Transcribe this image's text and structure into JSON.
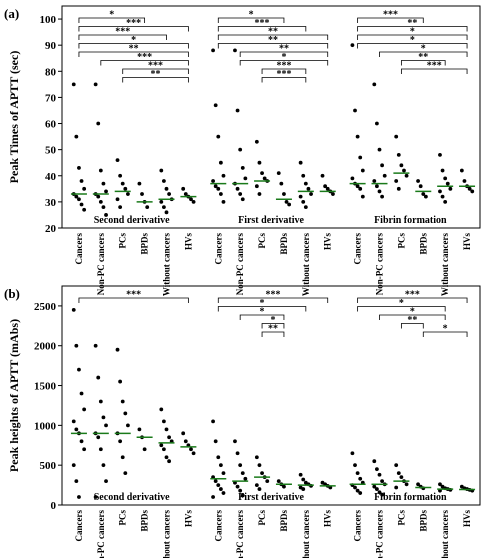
{
  "chart_data": [
    {
      "type": "dot",
      "title": "(a)",
      "y_label": "Peak Times of APTT (sec)",
      "ylim": [
        20,
        105
      ],
      "yticks": [
        20,
        30,
        40,
        50,
        60,
        70,
        80,
        90,
        100
      ],
      "sections": [
        {
          "name": "Second derivative",
          "groups": [
            {
              "name": "Cancers",
              "values": [
                75,
                55,
                43,
                38,
                35,
                33,
                32,
                31,
                29,
                27
              ],
              "median": 33
            },
            {
              "name": "Non-PC cancers",
              "values": [
                75,
                60,
                42,
                37,
                34,
                33,
                32,
                30,
                28,
                25
              ],
              "median": 33
            },
            {
              "name": "PCs",
              "values": [
                46,
                40,
                37,
                35,
                33,
                31,
                28
              ],
              "median": 34
            },
            {
              "name": "BPDs",
              "values": [
                37,
                33,
                30,
                28
              ],
              "median": 30
            },
            {
              "name": "Without cancers",
              "values": [
                42,
                38,
                35,
                33,
                31,
                30,
                28,
                26
              ],
              "median": 31
            },
            {
              "name": "HVs",
              "values": [
                35,
                33,
                32,
                31,
                30
              ],
              "median": 32
            }
          ],
          "brackets": [
            {
              "from": 0,
              "to": 3,
              "label": "*"
            },
            {
              "from": 0,
              "to": 5,
              "label": "***"
            },
            {
              "from": 0,
              "to": 4,
              "label": "***"
            },
            {
              "from": 0,
              "to": 5,
              "label": "*"
            },
            {
              "from": 0,
              "to": 5,
              "label": "**"
            },
            {
              "from": 1,
              "to": 5,
              "label": "***"
            },
            {
              "from": 2,
              "to": 5,
              "label": "***"
            },
            {
              "from": 2,
              "to": 5,
              "label": "**"
            }
          ]
        },
        {
          "name": "First derivative",
          "groups": [
            {
              "name": "Cancers",
              "values": [
                88,
                67,
                55,
                45,
                40,
                38,
                36,
                35,
                33,
                30
              ],
              "median": 37
            },
            {
              "name": "Non-PC cancers",
              "values": [
                88,
                65,
                50,
                43,
                39,
                37,
                35,
                33,
                31
              ],
              "median": 37
            },
            {
              "name": "PCs",
              "values": [
                53,
                45,
                41,
                39,
                38,
                36,
                33
              ],
              "median": 38
            },
            {
              "name": "BPDs",
              "values": [
                41,
                37,
                33,
                30,
                29
              ],
              "median": 31
            },
            {
              "name": "Without cancers",
              "values": [
                45,
                40,
                37,
                35,
                33,
                32,
                30,
                28
              ],
              "median": 34
            },
            {
              "name": "HVs",
              "values": [
                40,
                36,
                35,
                34,
                33
              ],
              "median": 34
            }
          ],
          "brackets": [
            {
              "from": 0,
              "to": 3,
              "label": "*"
            },
            {
              "from": 0,
              "to": 4,
              "label": "***"
            },
            {
              "from": 0,
              "to": 5,
              "label": "**"
            },
            {
              "from": 0,
              "to": 5,
              "label": "**"
            },
            {
              "from": 1,
              "to": 5,
              "label": "**"
            },
            {
              "from": 1,
              "to": 5,
              "label": "*"
            },
            {
              "from": 2,
              "to": 4,
              "label": "***"
            },
            {
              "from": 2,
              "to": 4,
              "label": "***"
            }
          ]
        },
        {
          "name": "Fibrin formation",
          "groups": [
            {
              "name": "Cancers",
              "values": [
                90,
                65,
                55,
                47,
                42,
                39,
                37,
                36,
                35,
                32
              ],
              "median": 37
            },
            {
              "name": "Non-PC cancers",
              "values": [
                75,
                60,
                50,
                44,
                40,
                38,
                36,
                34,
                32
              ],
              "median": 37
            },
            {
              "name": "PCs",
              "values": [
                55,
                48,
                44,
                42,
                40,
                38,
                35
              ],
              "median": 41
            },
            {
              "name": "BPDs",
              "values": [
                38,
                36,
                33,
                32
              ],
              "median": 34
            },
            {
              "name": "Without cancers",
              "values": [
                48,
                42,
                39,
                37,
                35,
                34,
                32,
                30
              ],
              "median": 36
            },
            {
              "name": "HVs",
              "values": [
                42,
                38,
                36,
                35,
                34
              ],
              "median": 36
            }
          ],
          "brackets": [
            {
              "from": 0,
              "to": 3,
              "label": "***"
            },
            {
              "from": 0,
              "to": 5,
              "label": "**"
            },
            {
              "from": 0,
              "to": 5,
              "label": "*"
            },
            {
              "from": 0,
              "to": 5,
              "label": "*"
            },
            {
              "from": 1,
              "to": 5,
              "label": "*"
            },
            {
              "from": 2,
              "to": 4,
              "label": "**"
            },
            {
              "from": 2,
              "to": 5,
              "label": "***"
            }
          ]
        }
      ]
    },
    {
      "type": "dot",
      "title": "(b)",
      "y_label": "Peak heights of APTT (mAbs)",
      "ylim": [
        0,
        2750
      ],
      "yticks": [
        0,
        500,
        1000,
        1500,
        2000,
        2500
      ],
      "sections": [
        {
          "name": "Second derivative",
          "groups": [
            {
              "name": "Cancers",
              "values": [
                2450,
                2000,
                1700,
                1400,
                1200,
                1050,
                950,
                900,
                800,
                700,
                500,
                300,
                100
              ],
              "median": 900
            },
            {
              "name": "Non-PC cancers",
              "values": [
                2000,
                1600,
                1300,
                1100,
                1000,
                900,
                850,
                700,
                500,
                300,
                100
              ],
              "median": 900
            },
            {
              "name": "PCs",
              "values": [
                1950,
                1550,
                1300,
                1150,
                1000,
                900,
                800,
                600,
                400
              ],
              "median": 900
            },
            {
              "name": "BPDs",
              "values": [
                950,
                850,
                700
              ],
              "median": 850
            },
            {
              "name": "Without cancers",
              "values": [
                1200,
                1050,
                950,
                850,
                800,
                750,
                700,
                600,
                550
              ],
              "median": 780
            },
            {
              "name": "HVs",
              "values": [
                900,
                800,
                750,
                700,
                650
              ],
              "median": 730
            }
          ],
          "brackets": [
            {
              "from": 0,
              "to": 5,
              "label": "***"
            }
          ]
        },
        {
          "name": "First derivative",
          "groups": [
            {
              "name": "Cancers",
              "values": [
                1050,
                800,
                600,
                500,
                400,
                350,
                300,
                250,
                200,
                150,
                100
              ],
              "median": 330
            },
            {
              "name": "Non-PC cancers",
              "values": [
                800,
                650,
                500,
                400,
                330,
                280,
                230,
                180,
                120
              ],
              "median": 300
            },
            {
              "name": "PCs",
              "values": [
                600,
                500,
                400,
                350,
                300,
                250,
                200
              ],
              "median": 350
            },
            {
              "name": "BPDs",
              "values": [
                300,
                260,
                230
              ],
              "median": 260
            },
            {
              "name": "Without cancers",
              "values": [
                380,
                320,
                280,
                260,
                240,
                220,
                200
              ],
              "median": 250
            },
            {
              "name": "HVs",
              "values": [
                280,
                260,
                240,
                220
              ],
              "median": 240
            }
          ],
          "brackets": [
            {
              "from": 0,
              "to": 5,
              "label": "***"
            },
            {
              "from": 0,
              "to": 4,
              "label": "*"
            },
            {
              "from": 1,
              "to": 3,
              "label": "*"
            },
            {
              "from": 2,
              "to": 3,
              "label": "*"
            },
            {
              "from": 2,
              "to": 3,
              "label": "**"
            }
          ]
        },
        {
          "name": "Fibrin formation",
          "groups": [
            {
              "name": "Cancers",
              "values": [
                650,
                500,
                400,
                330,
                280,
                250,
                220,
                180,
                150
              ],
              "median": 260
            },
            {
              "name": "Non-PC cancers",
              "values": [
                550,
                450,
                380,
                300,
                260,
                230,
                200,
                160,
                130
              ],
              "median": 260
            },
            {
              "name": "PCs",
              "values": [
                500,
                400,
                350,
                300,
                260,
                220
              ],
              "median": 300
            },
            {
              "name": "BPDs",
              "values": [
                260,
                230,
                210
              ],
              "median": 220
            },
            {
              "name": "Without cancers",
              "values": [
                260,
                230,
                210,
                200,
                190,
                180
              ],
              "median": 200
            },
            {
              "name": "HVs",
              "values": [
                230,
                210,
                200,
                190,
                180
              ],
              "median": 195
            }
          ],
          "brackets": [
            {
              "from": 0,
              "to": 5,
              "label": "***"
            },
            {
              "from": 0,
              "to": 4,
              "label": "*"
            },
            {
              "from": 1,
              "to": 4,
              "label": "*"
            },
            {
              "from": 2,
              "to": 3,
              "label": "**"
            },
            {
              "from": 3,
              "to": 5,
              "label": "*"
            }
          ]
        }
      ]
    }
  ]
}
